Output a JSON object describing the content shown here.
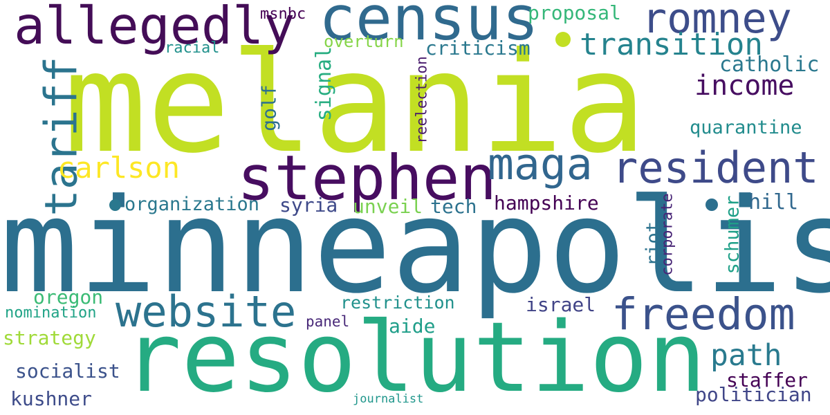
{
  "words": [
    {
      "text": "melania",
      "color": "#c2df23"
    },
    {
      "text": "minneapolis",
      "color": "#2c6f8e"
    },
    {
      "text": "resolution",
      "color": "#25ab82"
    },
    {
      "text": "census",
      "color": "#306a8e"
    },
    {
      "text": "allegedly",
      "color": "#440d57"
    },
    {
      "text": "romney",
      "color": "#3d4d8a"
    },
    {
      "text": "stephen",
      "color": "#470d60"
    },
    {
      "text": "resident",
      "color": "#3e4a89"
    },
    {
      "text": "maga",
      "color": "#31668e"
    },
    {
      "text": "tariff",
      "color": "#2b748e"
    },
    {
      "text": "website",
      "color": "#2c738e"
    },
    {
      "text": "freedom",
      "color": "#3b528b"
    },
    {
      "text": "transition",
      "color": "#25838e"
    },
    {
      "text": "income",
      "color": "#470e61"
    },
    {
      "text": "carlson",
      "color": "#fde725"
    },
    {
      "text": "path",
      "color": "#297a8e"
    },
    {
      "text": "catholic",
      "color": "#2a788e"
    },
    {
      "text": "quarantine",
      "color": "#228c8d"
    },
    {
      "text": "criticism",
      "color": "#2a788e"
    },
    {
      "text": "proposal",
      "color": "#35b779"
    },
    {
      "text": "overturn",
      "color": "#86d549"
    },
    {
      "text": "racial",
      "color": "#21918c"
    },
    {
      "text": "msnbc",
      "color": "#440154"
    },
    {
      "text": "golf",
      "color": "#2d708e"
    },
    {
      "text": "signal",
      "color": "#27ad81"
    },
    {
      "text": "reelection",
      "color": "#481a6c"
    },
    {
      "text": "organization",
      "color": "#2a788e"
    },
    {
      "text": "syria",
      "color": "#3e4989"
    },
    {
      "text": "unveil",
      "color": "#7ad151"
    },
    {
      "text": "tech",
      "color": "#2c728e"
    },
    {
      "text": "hampshire",
      "color": "#440154"
    },
    {
      "text": "hill",
      "color": "#31688e"
    },
    {
      "text": "riot",
      "color": "#2c728e"
    },
    {
      "text": "corporate",
      "color": "#482576"
    },
    {
      "text": "schumer",
      "color": "#1fa088"
    },
    {
      "text": "oregon",
      "color": "#3bbb75"
    },
    {
      "text": "nomination",
      "color": "#20a386"
    },
    {
      "text": "restriction",
      "color": "#21918c"
    },
    {
      "text": "israel",
      "color": "#414487"
    },
    {
      "text": "panel",
      "color": "#482878"
    },
    {
      "text": "aide",
      "color": "#1f9e89"
    },
    {
      "text": "strategy",
      "color": "#a0da39"
    },
    {
      "text": "socialist",
      "color": "#3b528b"
    },
    {
      "text": "staffer",
      "color": "#440154"
    },
    {
      "text": "kushner",
      "color": "#3e4c8a"
    },
    {
      "text": "journalist",
      "color": "#1f968b"
    },
    {
      "text": "politician",
      "color": "#404688"
    }
  ],
  "dots": [
    {
      "color": "#c2df23"
    },
    {
      "color": "#2a788e"
    },
    {
      "color": "#2c6f8e"
    }
  ]
}
